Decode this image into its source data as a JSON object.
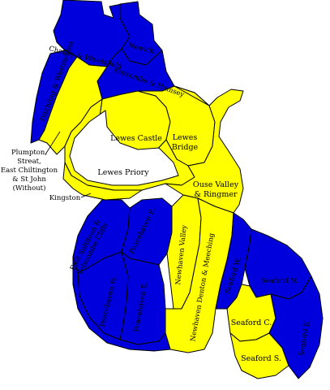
{
  "colors": {
    "party_blue": "#0000dd",
    "party_yellow": "#ffff00",
    "boundary": "#000000",
    "background": "#ffffff"
  },
  "wards": {
    "chailey": {
      "label": "Chailey & Wivelsfield",
      "fill": "blue"
    },
    "newick": {
      "label": "Newick",
      "fill": "blue"
    },
    "barcombe": {
      "label": "Barcombe & Hamsey",
      "fill": "blue"
    },
    "ditchling": {
      "label": "Ditchling & Westmeston",
      "fill": "blue"
    },
    "plumpton": {
      "label_lines": [
        "Plumpton,",
        "Streat,",
        "East Chiltington",
        "& St John",
        "(Without)"
      ],
      "fill": "yellow"
    },
    "lewes_castle": {
      "label": "Lewes Castle",
      "fill": "yellow"
    },
    "lewes_bridge": {
      "label_lines": [
        "Lewes",
        "Bridge"
      ],
      "fill": "yellow"
    },
    "lewes_priory": {
      "label": "Lewes Priory",
      "fill": "yellow"
    },
    "kingston": {
      "label": "Kingston",
      "fill": "yellow"
    },
    "ouse_valley": {
      "label_lines": [
        "Ouse Valley",
        "& Ringmer"
      ],
      "fill": "yellow"
    },
    "east_saltdean": {
      "label_lines": [
        "East Saltdean &",
        "Telscombe Cliffs"
      ],
      "fill": "blue"
    },
    "peacehaven_e_top": {
      "label": "Peacehaven E.",
      "fill": "blue"
    },
    "peacehaven_w": {
      "label": "Peacehaven W.",
      "fill": "blue"
    },
    "peacehaven_e": {
      "label": "Peacehaven E.",
      "fill": "blue"
    },
    "peacehaven_n": {
      "label": "Peacehaven N.",
      "fill": "blue"
    },
    "newhaven_valley": {
      "label": "Newhaven Valley",
      "fill": "yellow"
    },
    "newhaven_denton": {
      "label": "Newhaven Denton & Meeching",
      "fill": "yellow"
    },
    "seaford_w": {
      "label": "Seaford W.",
      "fill": "blue"
    },
    "seaford_n": {
      "label": "Seaford N.",
      "fill": "blue"
    },
    "seaford_c": {
      "label": "Seaford C.",
      "fill": "yellow"
    },
    "seaford_s": {
      "label": "Seaford S.",
      "fill": "yellow"
    },
    "seaford_e": {
      "label": "Seaford E.",
      "fill": "blue"
    }
  }
}
